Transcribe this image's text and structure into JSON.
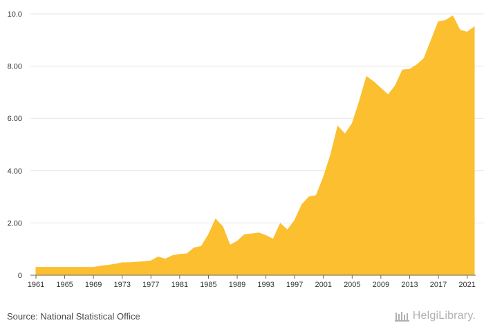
{
  "chart_data": {
    "type": "area",
    "title": "",
    "xlabel": "",
    "ylabel": "",
    "x": [
      1961,
      1962,
      1963,
      1964,
      1965,
      1966,
      1967,
      1968,
      1969,
      1970,
      1971,
      1972,
      1973,
      1974,
      1975,
      1976,
      1977,
      1978,
      1979,
      1980,
      1981,
      1982,
      1983,
      1984,
      1985,
      1986,
      1987,
      1988,
      1989,
      1990,
      1991,
      1992,
      1993,
      1994,
      1995,
      1996,
      1997,
      1998,
      1999,
      2000,
      2001,
      2002,
      2003,
      2004,
      2005,
      2006,
      2007,
      2008,
      2009,
      2010,
      2011,
      2012,
      2013,
      2014,
      2015,
      2016,
      2017,
      2018,
      2019,
      2020,
      2021,
      2022
    ],
    "values": [
      0.3,
      0.3,
      0.3,
      0.3,
      0.3,
      0.3,
      0.3,
      0.3,
      0.3,
      0.35,
      0.38,
      0.42,
      0.48,
      0.48,
      0.5,
      0.52,
      0.55,
      0.7,
      0.62,
      0.75,
      0.8,
      0.82,
      1.05,
      1.1,
      1.55,
      2.15,
      1.85,
      1.15,
      1.3,
      1.55,
      1.58,
      1.62,
      1.52,
      1.38,
      1.98,
      1.73,
      2.1,
      2.7,
      3.0,
      3.05,
      3.75,
      4.6,
      5.7,
      5.4,
      5.8,
      6.65,
      7.6,
      7.4,
      7.15,
      6.9,
      7.25,
      7.85,
      7.88,
      8.05,
      8.3,
      9.0,
      9.7,
      9.75,
      9.92,
      9.38,
      9.3,
      9.5
    ],
    "x_ticks": [
      "1961",
      "1965",
      "1969",
      "1973",
      "1977",
      "1981",
      "1985",
      "1989",
      "1993",
      "1997",
      "2001",
      "2005",
      "2009",
      "2013",
      "2017",
      "2021"
    ],
    "y_ticks": [
      "0",
      "2.00",
      "4.00",
      "6.00",
      "8.00",
      "10.0"
    ],
    "ylim": [
      0,
      10
    ],
    "xlim": [
      1961,
      2022
    ],
    "grid": true,
    "legend": "none",
    "fill_color": "#fbbf2f",
    "grid_color": "#e6e6e6"
  },
  "footer": {
    "source": "Source: National Statistical Office",
    "logo_text": "HelgiLibrary."
  }
}
